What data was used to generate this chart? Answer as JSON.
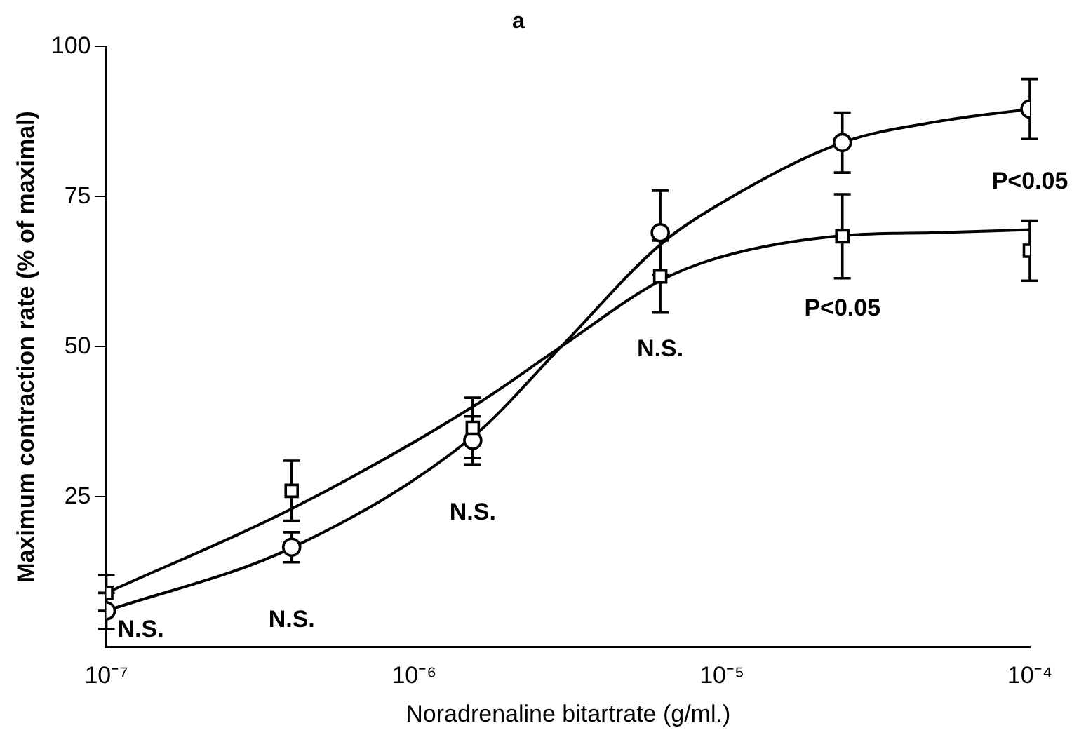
{
  "chart_data": {
    "type": "scatter",
    "title": "a",
    "xlabel": "Noradrenaline bitartrate (g/ml.)",
    "ylabel": "Maximum contraction rate (% of maximal)",
    "log": "x",
    "xlim": [
      1e-07,
      0.0001
    ],
    "xticks": [
      {
        "value": 1e-07,
        "label": "10⁻⁷"
      },
      {
        "value": 1e-06,
        "label": "10⁻⁶"
      },
      {
        "value": 1e-05,
        "label": "10⁻⁵"
      },
      {
        "value": 0.0001,
        "label": "10⁻⁴"
      }
    ],
    "ylim": [
      0,
      100
    ],
    "yticks": [
      25,
      50,
      75,
      100
    ],
    "grid": false,
    "legend": false,
    "series": [
      {
        "type": "line",
        "marker": "none",
        "color": "#000000",
        "x": [
          1e-07,
          4e-07,
          1.55e-06,
          3e-06,
          6.3e-06,
          1e-05,
          2.46e-05,
          5e-05,
          0.0001
        ],
        "values": [
          9,
          23,
          40,
          50,
          61,
          65,
          68.5,
          69,
          69.5
        ]
      },
      {
        "type": "line",
        "marker": "none",
        "color": "#000000",
        "x": [
          1e-07,
          4e-07,
          1.55e-06,
          3e-06,
          6.3e-06,
          1e-05,
          2.46e-05,
          5e-05,
          0.0001
        ],
        "values": [
          6,
          16.5,
          35,
          50,
          67,
          74,
          84,
          87.5,
          89.6
        ]
      },
      {
        "marker": "square",
        "color": "#000000",
        "x": [
          1e-07,
          4e-07,
          1.55e-06,
          6.3e-06,
          2.46e-05,
          0.0001
        ],
        "values": [
          9,
          26,
          36.5,
          61.7,
          68.4,
          66
        ],
        "errors": [
          3,
          5,
          5,
          6,
          7,
          5
        ]
      },
      {
        "marker": "circle",
        "color": "#000000",
        "x": [
          1e-07,
          4e-07,
          1.55e-06,
          6.3e-06,
          2.46e-05,
          0.0001
        ],
        "values": [
          6,
          16.6,
          34.4,
          69,
          84,
          89.6
        ],
        "errors": [
          3,
          2.5,
          4,
          7,
          5,
          5
        ]
      }
    ],
    "annotations": [
      {
        "text": "N.S.",
        "x": 1e-07,
        "y": 6
      },
      {
        "text": "N.S.",
        "x": 4e-07,
        "y": 16.6
      },
      {
        "text": "N.S.",
        "x": 1.55e-06,
        "y": 34.4
      },
      {
        "text": "N.S.",
        "x": 6.3e-06,
        "y": 61.7
      },
      {
        "text": "P<0.05",
        "x": 2.46e-05,
        "y": 68.4
      },
      {
        "text": "P<0.05",
        "x": 0.0001,
        "y": 89.6
      }
    ]
  }
}
